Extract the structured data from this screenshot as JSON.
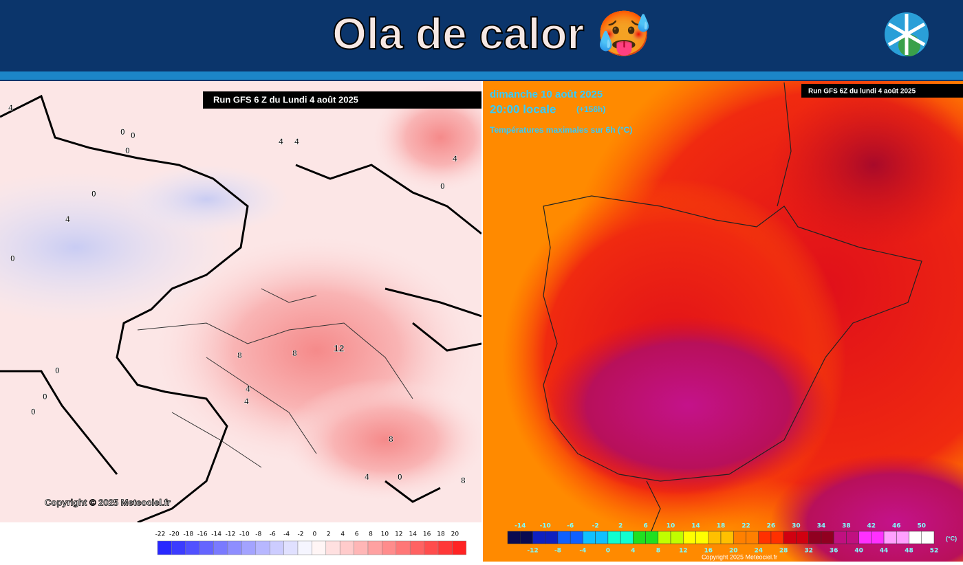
{
  "header": {
    "title": "Ola de calor 🥵"
  },
  "left_map": {
    "run_label": "Run GFS 6 Z du Lundi 4 août 2025",
    "copyright": "Copyright © 2025 Meteociel.fr",
    "contour_labels": [
      "4",
      "0",
      "0",
      "0",
      "0",
      "4",
      "4",
      "4",
      "0",
      "4",
      "0",
      "12",
      "8",
      "8",
      "4",
      "4",
      "0",
      "0",
      "0",
      "8",
      "8",
      "4",
      "0"
    ],
    "colorbar_labels": [
      "-22",
      "-20",
      "-18",
      "-16",
      "-14",
      "-12",
      "-10",
      "-8",
      "-6",
      "-4",
      "-2",
      "0",
      "2",
      "4",
      "6",
      "8",
      "10",
      "12",
      "14",
      "16",
      "18",
      "20"
    ]
  },
  "right_map": {
    "date": "dimanche 10 août 2025",
    "time": "20:00 locale",
    "lead": "(+156h)",
    "field": "Températures maximales sur 6h (°C)",
    "run_label": "Run GFS 6Z du lundi 4 août 2025",
    "copyright": "Copyright 2025 Meteociel.fr",
    "unit": "(°C)",
    "colorbar_top": [
      "-14",
      "-10",
      "-6",
      "-2",
      "2",
      "6",
      "10",
      "14",
      "18",
      "22",
      "26",
      "30",
      "34",
      "38",
      "42",
      "46",
      "50"
    ],
    "colorbar_bottom": [
      "-12",
      "-8",
      "-4",
      "0",
      "4",
      "8",
      "12",
      "16",
      "20",
      "24",
      "28",
      "32",
      "36",
      "40",
      "44",
      "48",
      "52"
    ]
  }
}
